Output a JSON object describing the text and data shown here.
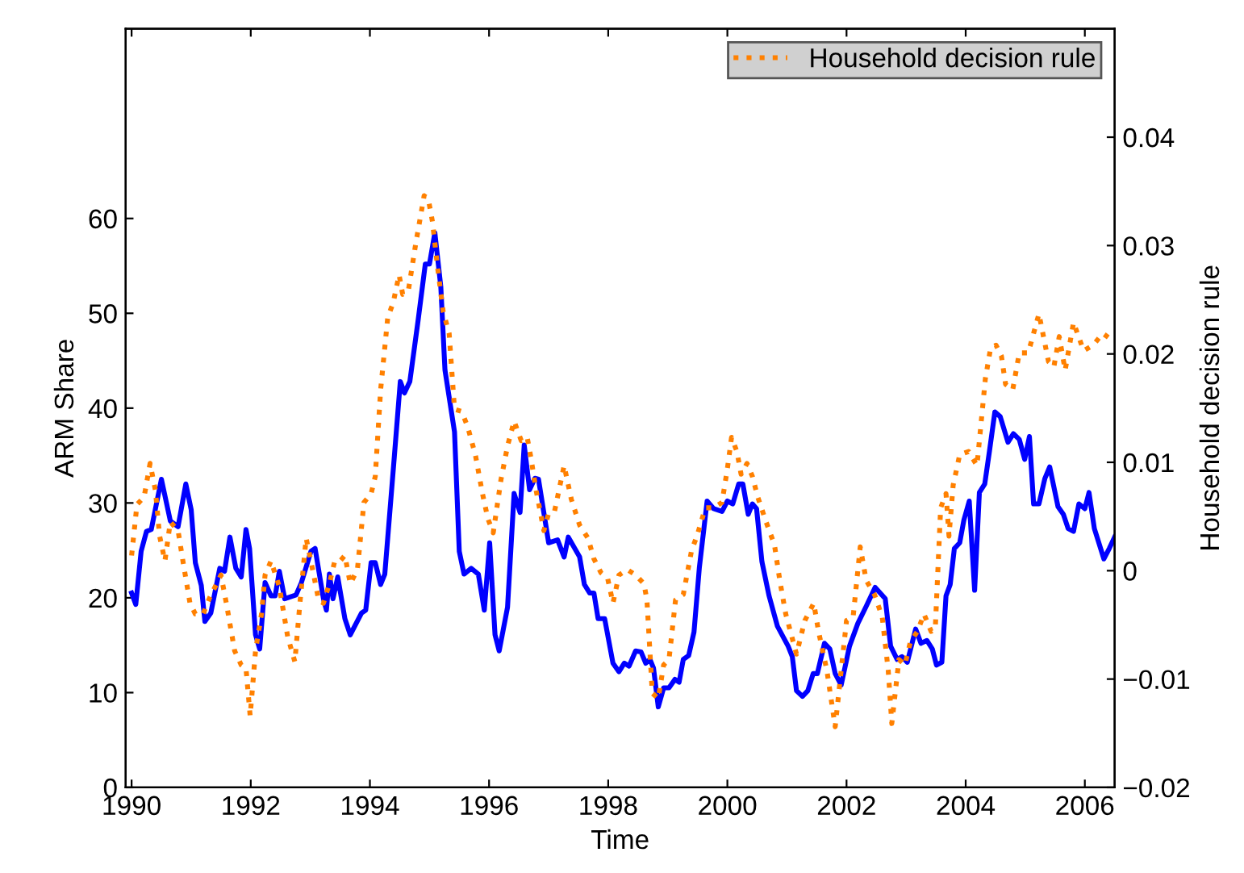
{
  "chart_data": {
    "type": "line",
    "xlabel": "Time",
    "ylabel": "ARM Share",
    "y2label": "Household decision rule",
    "legend": "top right",
    "grid": false,
    "xlim": [
      1989.9,
      2006.5
    ],
    "xticks": [
      1990,
      1992,
      1994,
      1996,
      1998,
      2000,
      2002,
      2004,
      2006
    ],
    "ylim": [
      0,
      80
    ],
    "yticks": [
      0,
      10,
      20,
      30,
      40,
      50,
      60
    ],
    "y2lim": [
      -0.02,
      0.05
    ],
    "y2ticks": [
      {
        "value": -0.02,
        "label": "−0.02"
      },
      {
        "value": -0.01,
        "label": "−0.01"
      },
      0,
      0.01,
      0.02,
      0.03,
      0.04
    ],
    "series": [
      {
        "color": "#0000ff",
        "line_style": "solid",
        "x": [
          1990.0,
          1990.07,
          1990.16,
          1990.25,
          1990.33,
          1990.5,
          1990.65,
          1990.78,
          1990.91,
          1991.0,
          1991.07,
          1991.17,
          1991.23,
          1991.33,
          1991.48,
          1991.56,
          1991.65,
          1991.75,
          1991.84,
          1991.92,
          1991.98,
          1992.08,
          1992.15,
          1992.24,
          1992.34,
          1992.41,
          1992.48,
          1992.57,
          1992.76,
          1992.85,
          1993.01,
          1993.08,
          1993.22,
          1993.27,
          1993.32,
          1993.38,
          1993.46,
          1993.58,
          1993.67,
          1993.86,
          1993.93,
          1994.02,
          1994.09,
          1994.18,
          1994.25,
          1994.41,
          1994.51,
          1994.58,
          1994.67,
          1994.81,
          1994.93,
          1995.0,
          1995.09,
          1995.19,
          1995.26,
          1995.42,
          1995.5,
          1995.58,
          1995.7,
          1995.82,
          1995.92,
          1996.01,
          1996.1,
          1996.17,
          1996.31,
          1996.42,
          1996.52,
          1996.59,
          1996.68,
          1996.77,
          1996.83,
          1997.0,
          1997.15,
          1997.26,
          1997.33,
          1997.52,
          1997.6,
          1997.69,
          1997.76,
          1997.83,
          1997.94,
          1998.08,
          1998.18,
          1998.27,
          1998.35,
          1998.46,
          1998.55,
          1998.63,
          1998.7,
          1998.76,
          1998.84,
          1998.93,
          1999.02,
          1999.12,
          1999.19,
          1999.26,
          1999.35,
          1999.44,
          1999.53,
          1999.66,
          1999.77,
          1999.91,
          2000.0,
          2000.09,
          2000.19,
          2000.26,
          2000.35,
          2000.42,
          2000.49,
          2000.58,
          2000.7,
          2000.84,
          2001.02,
          2001.09,
          2001.16,
          2001.26,
          2001.35,
          2001.44,
          2001.51,
          2001.63,
          2001.72,
          2001.81,
          2001.91,
          2002.05,
          2002.19,
          2002.33,
          2002.48,
          2002.65,
          2002.74,
          2002.85,
          2002.93,
          2003.02,
          2003.16,
          2003.25,
          2003.35,
          2003.44,
          2003.51,
          2003.6,
          2003.67,
          2003.74,
          2003.81,
          2003.9,
          2003.97,
          2004.06,
          2004.15,
          2004.23,
          2004.32,
          2004.4,
          2004.49,
          2004.58,
          2004.71,
          2004.8,
          2004.9,
          2004.99,
          2005.07,
          2005.14,
          2005.23,
          2005.33,
          2005.41,
          2005.55,
          2005.64,
          2005.72,
          2005.81,
          2005.9,
          2006.0,
          2006.07,
          2006.16,
          2006.32,
          2006.41,
          2006.5
        ],
        "values": [
          20.5,
          19.3,
          24.9,
          27,
          27.2,
          32.5,
          28.1,
          27.5,
          32,
          29.3,
          23.7,
          21.3,
          17.5,
          18.4,
          23.1,
          22.8,
          26.4,
          23.1,
          22.2,
          27.2,
          25.2,
          16.1,
          14.6,
          21.6,
          20.2,
          20.2,
          22.8,
          19.9,
          20.3,
          21.6,
          24.9,
          25.2,
          19.9,
          18.7,
          22.5,
          19.9,
          22.2,
          17.8,
          16.1,
          18.4,
          18.7,
          23.7,
          23.7,
          21.4,
          22.5,
          34.9,
          42.8,
          41.6,
          42.8,
          49.3,
          55.2,
          55.2,
          58.5,
          52.8,
          44,
          37.5,
          24.9,
          22.5,
          23.1,
          22.5,
          18.7,
          25.8,
          16.1,
          14.4,
          19,
          31,
          29,
          36.1,
          31.4,
          32.6,
          32.5,
          25.8,
          26.1,
          24.3,
          26.4,
          24.3,
          21.4,
          20.5,
          20.5,
          17.8,
          17.8,
          13.1,
          12.2,
          13.1,
          12.8,
          14.4,
          14.3,
          13.1,
          13.5,
          12.6,
          8.5,
          10.5,
          10.5,
          11.4,
          11.1,
          13.5,
          13.9,
          16.4,
          23.2,
          30.2,
          29.4,
          29.1,
          30.2,
          29.9,
          32,
          32,
          28.8,
          29.9,
          29.4,
          23.8,
          20.2,
          17,
          14.9,
          13.8,
          10.2,
          9.6,
          10.2,
          12,
          12,
          15.2,
          14.6,
          12,
          10.8,
          14.9,
          17.3,
          19.1,
          21.1,
          19.9,
          14.9,
          13.5,
          13.8,
          13.2,
          16.7,
          15.2,
          15.5,
          14.6,
          12.9,
          13.2,
          20.2,
          21.4,
          25.2,
          25.8,
          28.2,
          30.2,
          20.8,
          31.1,
          32,
          35.5,
          39.6,
          39.1,
          36.4,
          37.3,
          36.7,
          34.6,
          37,
          29.9,
          29.9,
          32.6,
          33.8,
          29.6,
          28.8,
          27.3,
          27,
          29.9,
          29.4,
          31.1,
          27.3,
          24.1,
          25.2,
          26.4
        ]
      },
      {
        "name": "Household decision rule",
        "color": "#ff8000",
        "axis": "y2",
        "line_style": "dotted",
        "x": [
          1990.0,
          1990.09,
          1990.21,
          1990.31,
          1990.4,
          1990.47,
          1990.56,
          1990.65,
          1990.78,
          1990.87,
          1990.98,
          1991.07,
          1991.2,
          1991.31,
          1991.5,
          1991.59,
          1991.73,
          1991.84,
          1991.92,
          1991.99,
          1992.08,
          1992.18,
          1992.24,
          1992.34,
          1992.48,
          1992.62,
          1992.74,
          1992.83,
          1992.93,
          1993.02,
          1993.14,
          1993.22,
          1993.32,
          1993.41,
          1993.5,
          1993.58,
          1993.67,
          1993.79,
          1993.9,
          1994.02,
          1994.09,
          1994.18,
          1994.3,
          1994.39,
          1994.49,
          1994.55,
          1994.65,
          1994.77,
          1994.91,
          1994.98,
          1995.05,
          1995.14,
          1995.23,
          1995.33,
          1995.42,
          1995.54,
          1995.64,
          1995.77,
          1995.89,
          1995.98,
          1996.07,
          1996.2,
          1996.31,
          1996.42,
          1996.54,
          1996.64,
          1996.7,
          1996.79,
          1996.92,
          1997.0,
          1997.1,
          1997.26,
          1997.38,
          1997.52,
          1997.66,
          1997.76,
          1997.88,
          1997.99,
          1998.08,
          1998.18,
          1998.32,
          1998.46,
          1998.6,
          1998.65,
          1998.74,
          1998.84,
          1998.93,
          1999.02,
          1999.13,
          1999.26,
          1999.4,
          1999.49,
          1999.63,
          1999.77,
          1999.91,
          2000.0,
          2000.07,
          2000.16,
          2000.23,
          2000.33,
          2000.42,
          2000.51,
          2000.65,
          2000.79,
          2000.88,
          2000.98,
          2001.16,
          2001.3,
          2001.45,
          2001.53,
          2001.67,
          2001.81,
          2001.91,
          2002.0,
          2002.11,
          2002.23,
          2002.33,
          2002.47,
          2002.6,
          2002.7,
          2002.76,
          2002.88,
          2002.98,
          2003.07,
          2003.19,
          2003.3,
          2003.42,
          2003.49,
          2003.58,
          2003.67,
          2003.72,
          2003.79,
          2003.9,
          2004.05,
          2004.19,
          2004.33,
          2004.42,
          2004.51,
          2004.6,
          2004.67,
          2004.79,
          2004.9,
          2005.05,
          2005.23,
          2005.39,
          2005.48,
          2005.57,
          2005.67,
          2005.81,
          2005.98,
          2006.14,
          2006.3,
          2006.5
        ],
        "values": [
          0.0014,
          0.0061,
          0.0068,
          0.0099,
          0.0074,
          0.0032,
          0.0009,
          0.0045,
          0.0037,
          0.0006,
          -0.003,
          -0.004,
          -0.004,
          -0.0025,
          -0.0004,
          -0.003,
          -0.0074,
          -0.0087,
          -0.009,
          -0.0134,
          -0.0074,
          -0.004,
          -0.0004,
          0.0009,
          -0.0015,
          -0.0061,
          -0.0084,
          -0.0027,
          0.003,
          0.0006,
          -0.0027,
          -0.003,
          -0.0012,
          0.0009,
          0.0009,
          0.0014,
          -0.0012,
          0.0001,
          0.0063,
          0.0071,
          0.0087,
          0.0167,
          0.0234,
          0.0247,
          0.0273,
          0.0255,
          0.026,
          0.0302,
          0.0346,
          0.0343,
          0.0322,
          0.0278,
          0.0239,
          0.0219,
          0.0149,
          0.0147,
          0.0133,
          0.0107,
          0.0071,
          0.0048,
          0.0035,
          0.0084,
          0.0115,
          0.0138,
          0.012,
          0.0123,
          0.0105,
          0.0074,
          0.0037,
          0.0053,
          0.0055,
          0.0097,
          0.0066,
          0.0042,
          0.003,
          0.0011,
          -0.0002,
          -0.0007,
          -0.003,
          -0.0004,
          0.0001,
          -0.0004,
          -0.0012,
          -0.0027,
          -0.0113,
          -0.0118,
          -0.0087,
          -0.0082,
          -0.0027,
          -0.0022,
          0.0019,
          0.0032,
          0.0058,
          0.0058,
          0.0063,
          0.0094,
          0.0123,
          0.011,
          0.0089,
          0.0099,
          0.0087,
          0.0068,
          0.0045,
          0.0024,
          -0.0009,
          -0.004,
          -0.0077,
          -0.0046,
          -0.003,
          -0.0056,
          -0.0092,
          -0.0144,
          -0.0092,
          -0.0046,
          -0.0043,
          0.0022,
          -0.0009,
          -0.0022,
          -0.0043,
          -0.0092,
          -0.0141,
          -0.0082,
          -0.0087,
          -0.0066,
          -0.0056,
          -0.004,
          -0.0056,
          -0.0053,
          0.0058,
          0.0071,
          0.0032,
          0.0079,
          0.0107,
          0.011,
          0.0097,
          0.0177,
          0.0206,
          0.0208,
          0.0198,
          0.0172,
          0.0167,
          0.0201,
          0.0201,
          0.0237,
          0.0193,
          0.0188,
          0.0216,
          0.0185,
          0.0229,
          0.0203,
          0.0208,
          0.0219,
          0.0211
        ]
      }
    ]
  }
}
